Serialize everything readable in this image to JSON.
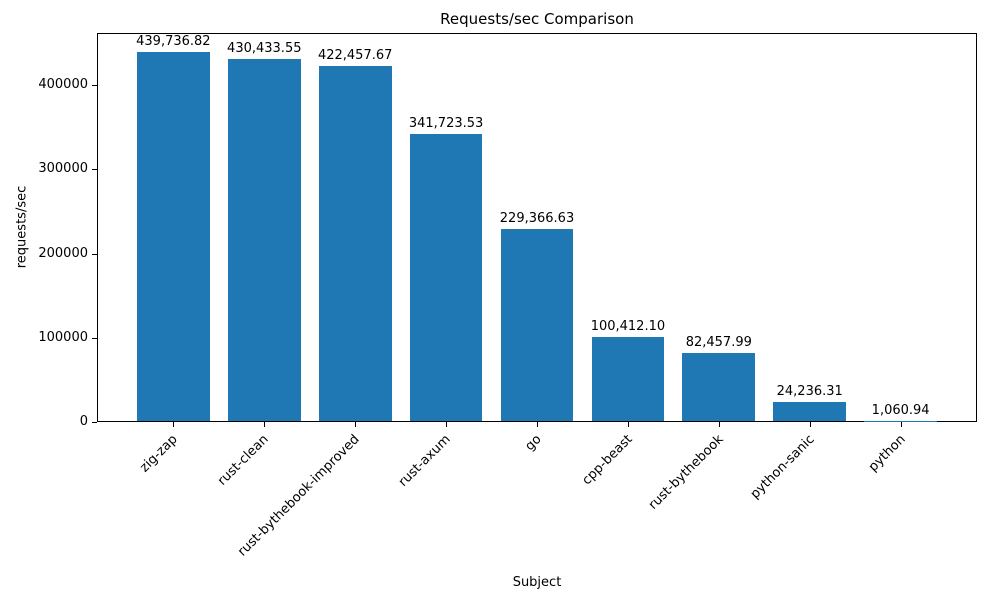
{
  "chart_data": {
    "type": "bar",
    "title": "Requests/sec Comparison",
    "xlabel": "Subject",
    "ylabel": "requests/sec",
    "categories": [
      "zig-zap",
      "rust-clean",
      "rust-bythebook-improved",
      "rust-axum",
      "go",
      "cpp-beast",
      "rust-bythebook",
      "python-sanic",
      "python"
    ],
    "values": [
      439736.82,
      430433.55,
      422457.67,
      341723.53,
      229366.63,
      100412.1,
      82457.99,
      24236.31,
      1060.94
    ],
    "bar_labels": [
      "439,736.82",
      "430,433.55",
      "422,457.67",
      "341,723.53",
      "229,366.63",
      "100,412.10",
      "82,457.99",
      "24,236.31",
      "1,060.94"
    ],
    "yticks": [
      0,
      100000,
      200000,
      300000,
      400000
    ],
    "ytick_labels": [
      "0",
      "100000",
      "200000",
      "300000",
      "400000"
    ],
    "ylim": [
      0,
      461724
    ],
    "bar_color": "#1f77b4",
    "grid": false,
    "legend_position": "none"
  }
}
